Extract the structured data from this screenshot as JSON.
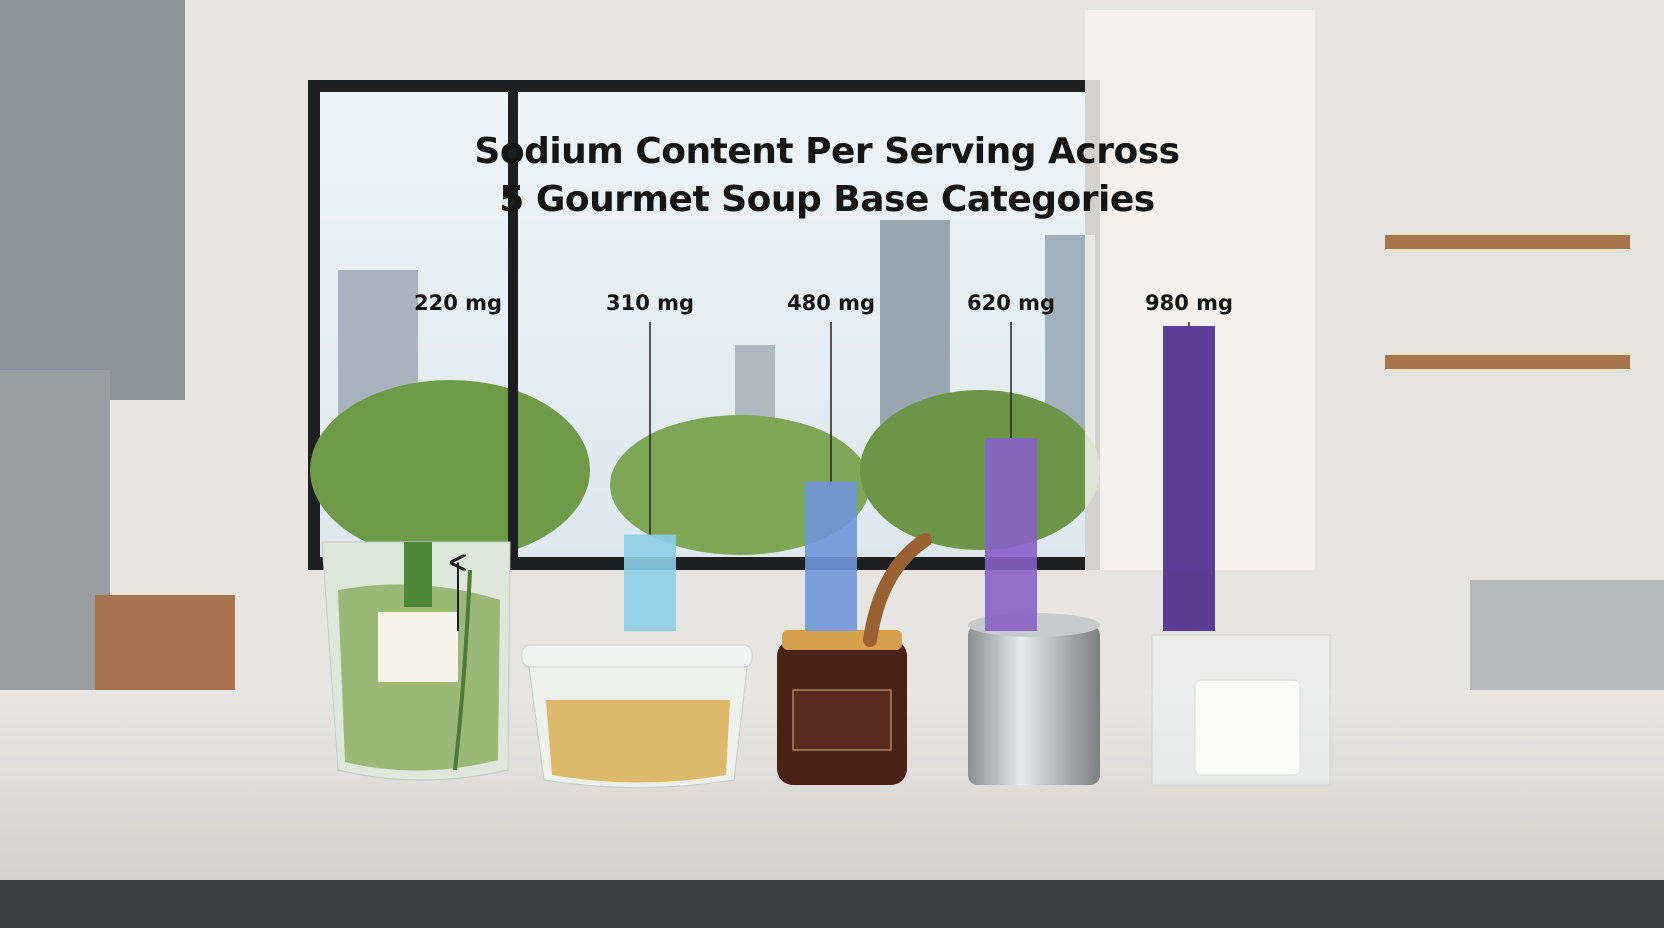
{
  "chart_data": {
    "type": "bar",
    "title": "Sodium Content Per Serving Across 5 Gourmet Soup Base Categories",
    "categories": [
      null,
      null,
      null,
      null,
      null
    ],
    "values": [
      220,
      310,
      480,
      620,
      980
    ],
    "value_labels": [
      "220 mg",
      "310 mg",
      "480 mg",
      "620 mg",
      "980 mg"
    ],
    "colors": [
      "#1e1e1e",
      "#8ccde6",
      "#6f95d9",
      "#8660c6",
      "#4b2a8c"
    ]
  }
}
